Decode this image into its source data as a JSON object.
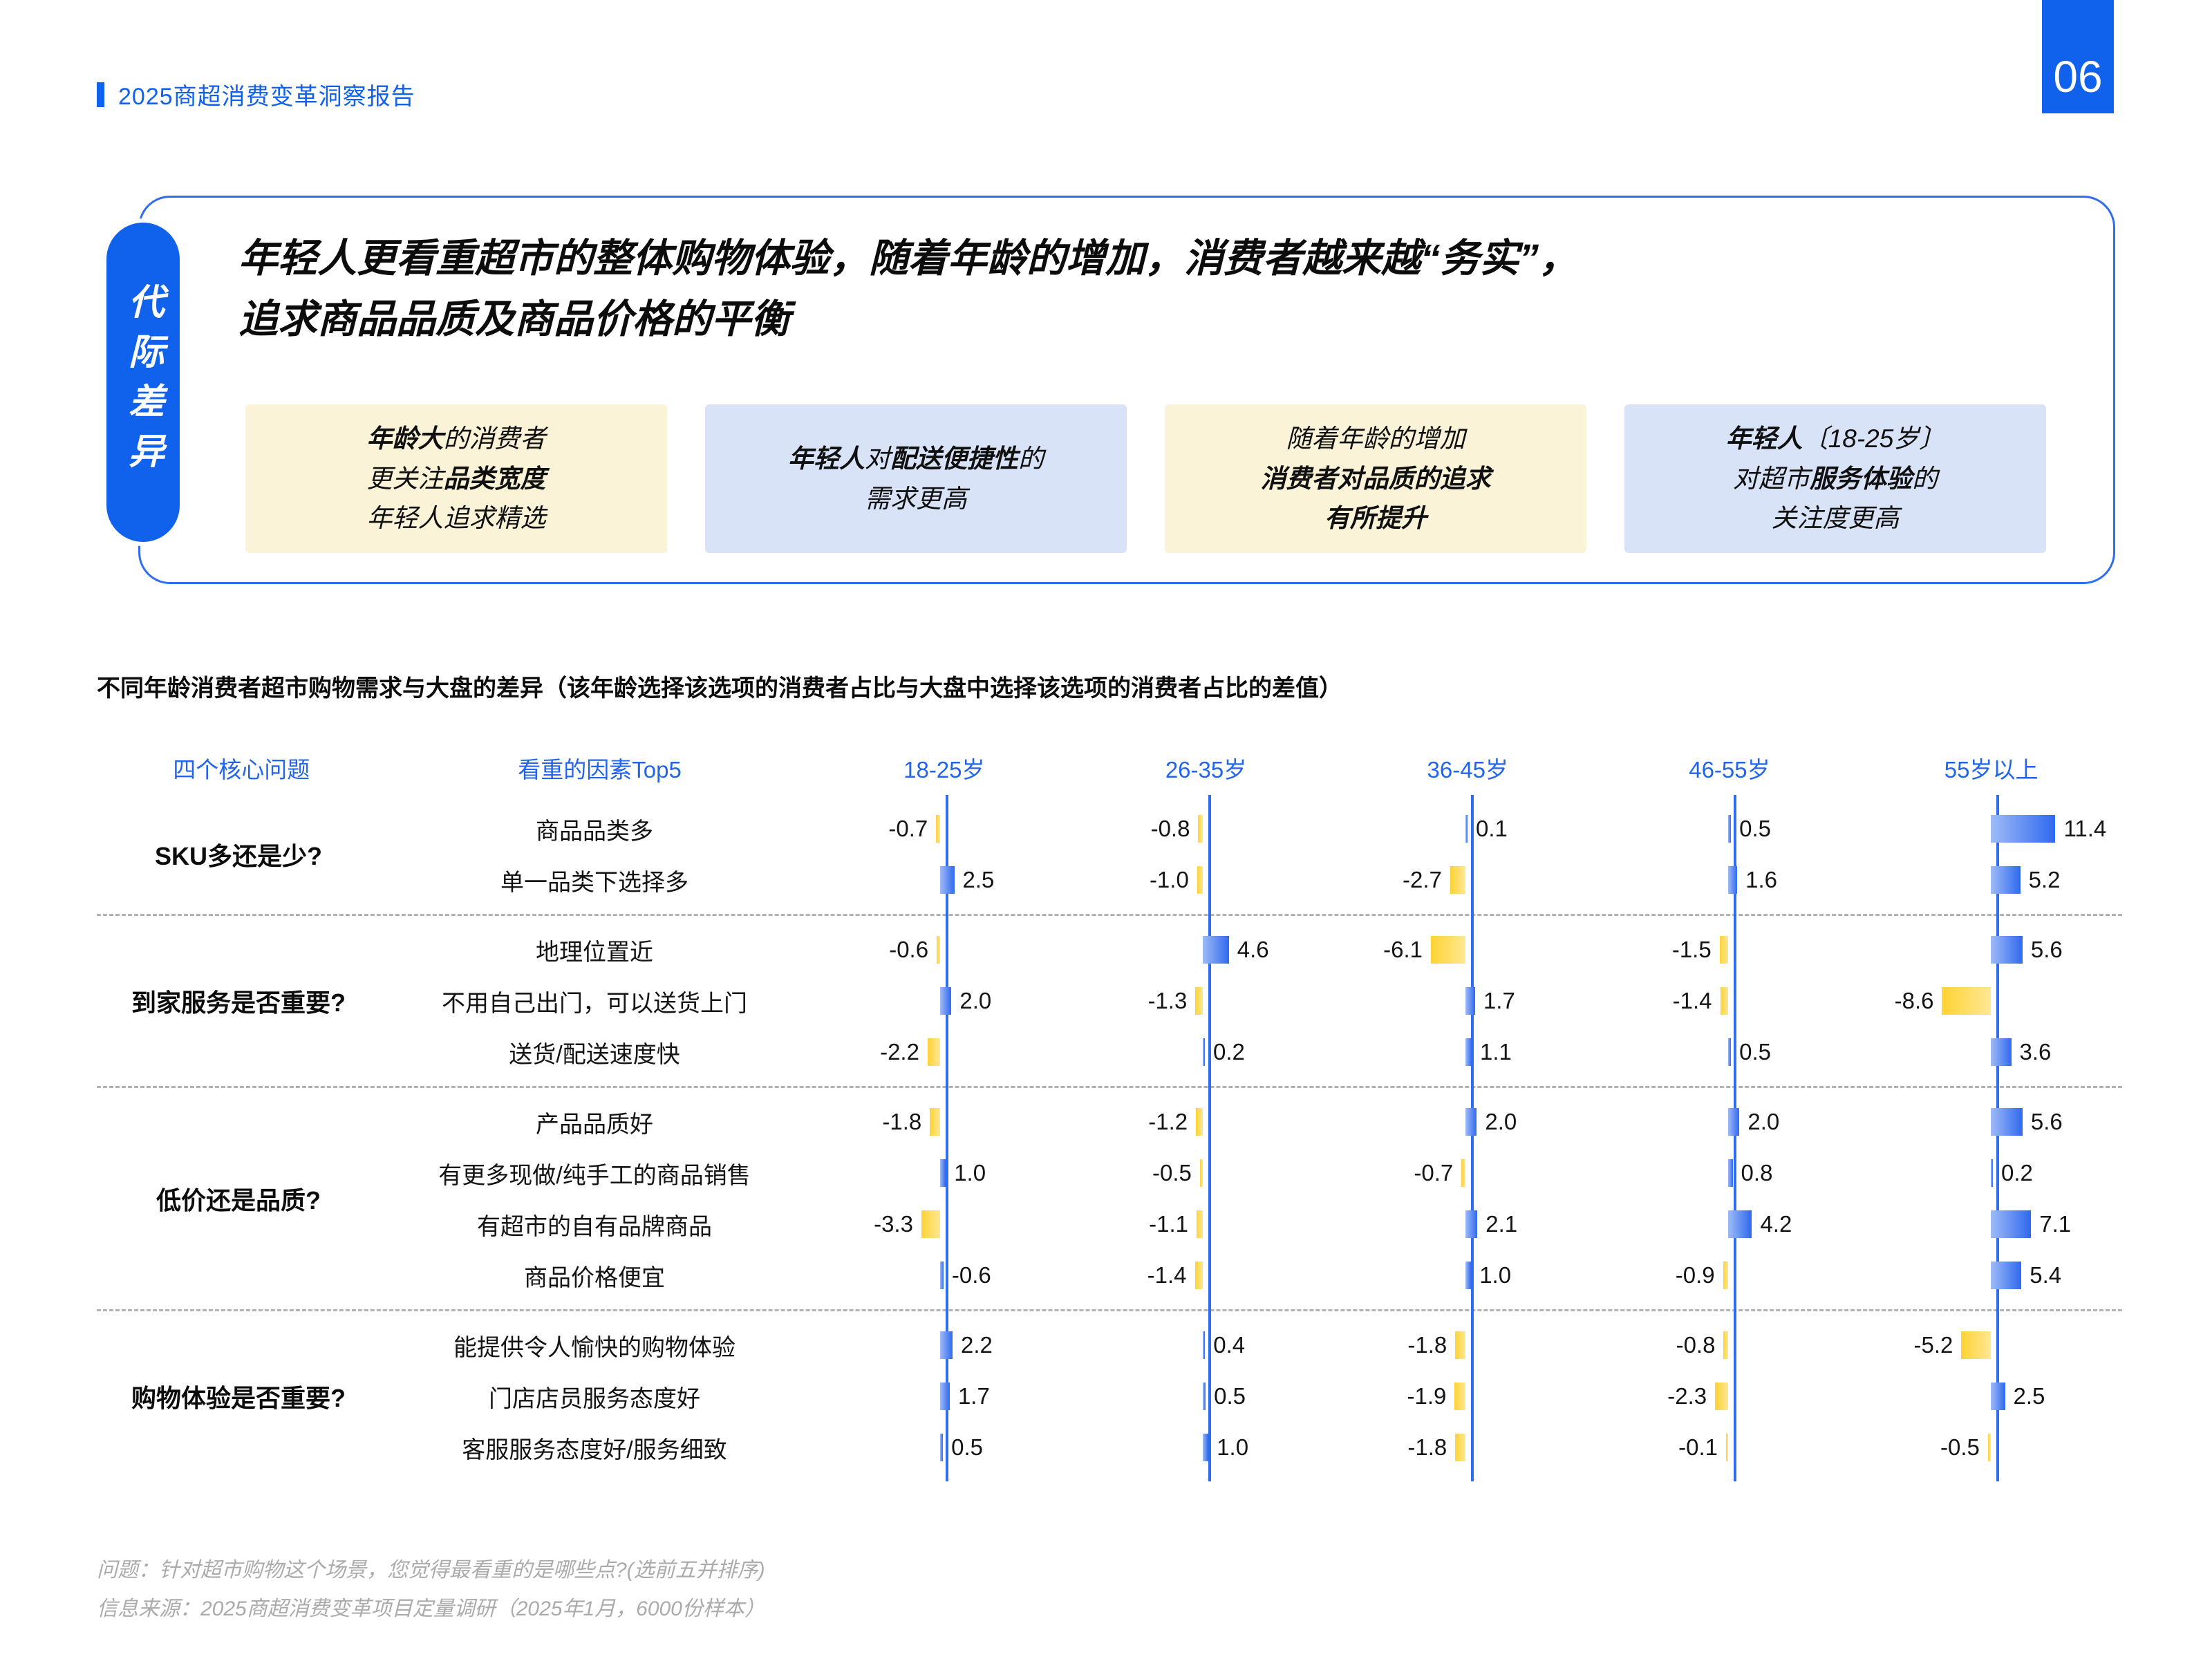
{
  "page": {
    "report_title": "2025商超消费变革洞察报告",
    "page_number": "06"
  },
  "hero": {
    "tag": "代际差异",
    "headline_line1": "年轻人更看重超市的整体购物体验，随着年龄的增加，消费者越来越“务实”，",
    "headline_line2": "追求商品品质及商品价格的平衡",
    "callouts": [
      {
        "style": "yellow",
        "lines": [
          [
            {
              "text": "年龄大",
              "bold": true
            },
            {
              "text": "的消费者",
              "bold": false
            }
          ],
          [
            {
              "text": "更关注",
              "bold": false
            },
            {
              "text": "品类宽度",
              "bold": true
            }
          ],
          [
            {
              "text": "年轻人追求精选",
              "bold": false
            }
          ]
        ]
      },
      {
        "style": "blue",
        "lines": [
          [
            {
              "text": "年轻人",
              "bold": true
            },
            {
              "text": "对",
              "bold": false
            },
            {
              "text": "配送便捷性",
              "bold": true
            },
            {
              "text": "的",
              "bold": false
            }
          ],
          [
            {
              "text": "需求更高",
              "bold": false
            }
          ]
        ]
      },
      {
        "style": "yellow",
        "lines": [
          [
            {
              "text": "随着年龄的增加",
              "bold": false
            }
          ],
          [
            {
              "text": "消费者对品质的追求",
              "bold": true
            }
          ],
          [
            {
              "text": "有所提升",
              "bold": true
            }
          ]
        ]
      },
      {
        "style": "blue",
        "lines": [
          [
            {
              "text": "年轻人",
              "bold": true
            },
            {
              "text": "〔18-25岁〕",
              "bold": false
            }
          ],
          [
            {
              "text": "对超市",
              "bold": false
            },
            {
              "text": "服务体验",
              "bold": true
            },
            {
              "text": "的",
              "bold": false
            }
          ],
          [
            {
              "text": "关注度更高",
              "bold": false
            }
          ]
        ]
      }
    ]
  },
  "chart_data": {
    "type": "bar",
    "variant": "diverging-bar-table",
    "title": "不同年龄消费者超市购物需求与大盘的差异（该年龄选择该选项的消费者占比与大盘中选择该选项的消费者占比的差值）",
    "question_col_header": "四个核心问题",
    "factor_col_header": "看重的因素Top5",
    "age_headers": [
      "18-25岁",
      "26-35岁",
      "36-45岁",
      "46-55岁",
      "55岁以上"
    ],
    "positive_color": "#2F69EF",
    "negative_color": "#FFD333",
    "groups": [
      {
        "question": "SKU多还是少?",
        "rows": [
          {
            "factor": "商品品类多",
            "values": [
              -0.7,
              -0.8,
              0.1,
              0.5,
              11.4
            ]
          },
          {
            "factor": "单一品类下选择多",
            "values": [
              2.5,
              -1.0,
              -2.7,
              1.6,
              5.2
            ]
          }
        ]
      },
      {
        "question": "到家服务是否重要?",
        "rows": [
          {
            "factor": "地理位置近",
            "values": [
              -0.6,
              4.6,
              -6.1,
              -1.5,
              5.6
            ]
          },
          {
            "factor": "不用自己出门，可以送货上门",
            "values": [
              2.0,
              -1.3,
              1.7,
              -1.4,
              -8.6
            ]
          },
          {
            "factor": "送货/配送速度快",
            "values": [
              -2.2,
              0.2,
              1.1,
              0.5,
              3.6
            ]
          }
        ]
      },
      {
        "question": "低价还是品质?",
        "rows": [
          {
            "factor": "产品品质好",
            "values": [
              -1.8,
              -1.2,
              2.0,
              2.0,
              5.6
            ]
          },
          {
            "factor": "有更多现做/纯手工的商品销售",
            "values": [
              1.0,
              -0.5,
              -0.7,
              0.8,
              0.2
            ]
          },
          {
            "factor": "有超市的自有品牌商品",
            "values": [
              -3.3,
              -1.1,
              2.1,
              4.2,
              7.1
            ]
          },
          {
            "factor": "商品价格便宜",
            "values": [
              -0.6,
              -1.4,
              1.0,
              -0.9,
              5.4
            ],
            "force_side": {
              "0": "pos"
            }
          }
        ]
      },
      {
        "question": "购物体验是否重要?",
        "rows": [
          {
            "factor": "能提供令人愉快的购物体验",
            "values": [
              2.2,
              0.4,
              -1.8,
              -0.8,
              -5.2
            ]
          },
          {
            "factor": "门店店员服务态度好",
            "values": [
              1.7,
              0.5,
              -1.9,
              -2.3,
              2.5
            ]
          },
          {
            "factor": "客服服务态度好/服务细致",
            "values": [
              0.5,
              1.0,
              -1.8,
              -0.1,
              -0.5
            ]
          }
        ]
      }
    ]
  },
  "footnotes": [
    "问题：针对超市购物这个场景，您觉得最看重的是哪些点?(选前五并排序)",
    "信息来源：2025商超消费变革项目定量调研（2025年1月，6000份样本）"
  ],
  "colors": {
    "accent_blue": "#1061EC",
    "bar_positive": "#2F69EF",
    "bar_negative": "#FFD333",
    "callout_yellow": "#FAF3D8",
    "callout_blue": "#D8E3F8"
  }
}
